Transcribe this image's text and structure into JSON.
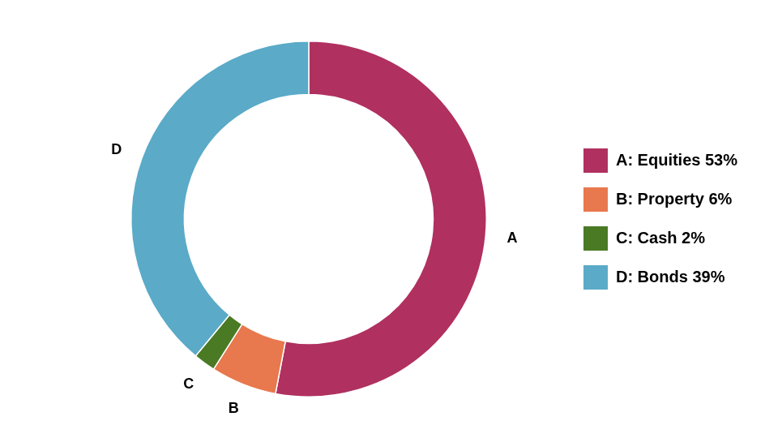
{
  "chart_data": {
    "type": "doughnut",
    "categories": [
      "A",
      "B",
      "C",
      "D"
    ],
    "values": [
      53,
      6,
      2,
      39
    ],
    "colors": [
      "#b03060",
      "#e8784d",
      "#4a7a24",
      "#5aaac8"
    ],
    "legend_labels": [
      "A: Equities 53%",
      "B: Property 6%",
      "C: Cash 2%",
      "D: Bonds 39%"
    ],
    "legend": "right"
  }
}
